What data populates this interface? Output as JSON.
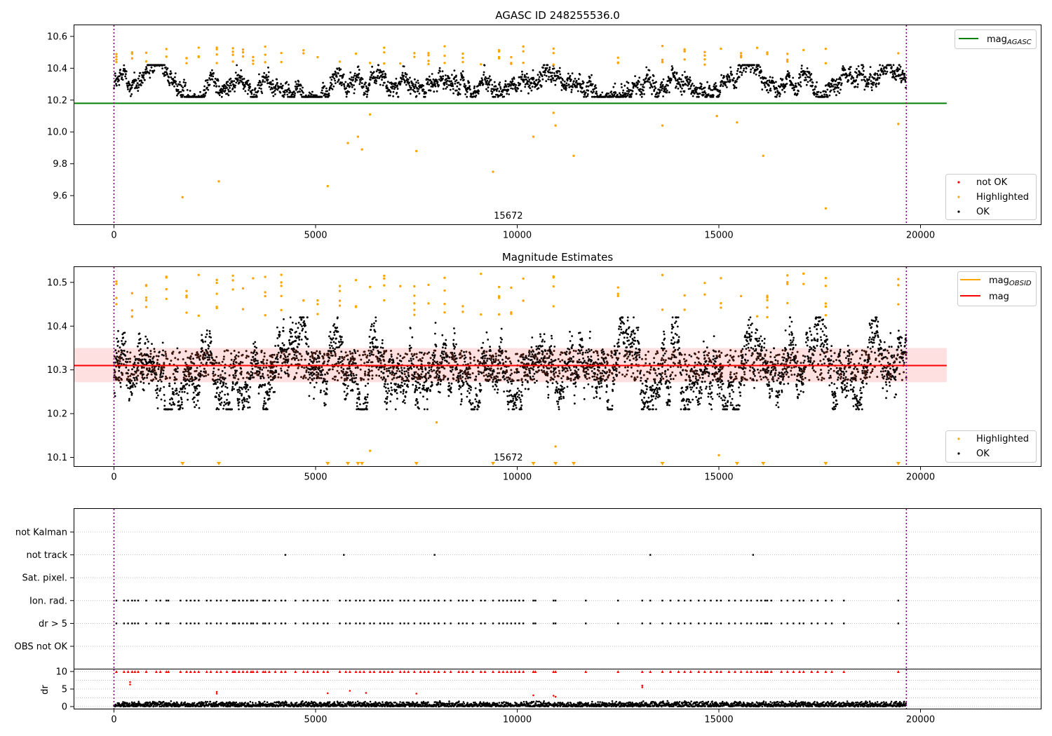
{
  "chart_data": [
    {
      "type": "scatter",
      "title": "AGASC ID 248255536.0",
      "xlim": [
        -1000,
        23000
      ],
      "ylim": [
        9.42,
        10.67
      ],
      "x_ticks": [
        0,
        5000,
        10000,
        15000,
        20000
      ],
      "y_ticks": [
        9.6,
        9.8,
        10.0,
        10.2,
        10.4,
        10.6
      ],
      "grid": false,
      "annotation": "15672",
      "vlines": [
        0,
        19650
      ],
      "hlines": [
        {
          "name": "mag_AGASC",
          "y": 10.18,
          "x_range": [
            -1000,
            20650
          ],
          "color": "#008000"
        }
      ],
      "series": [
        {
          "name": "not OK",
          "color": "#ff0000",
          "points": []
        },
        {
          "name": "Highlighted",
          "color": "#ffa500",
          "points": [
            [
              1700,
              9.59
            ],
            [
              2600,
              9.69
            ],
            [
              5300,
              9.66
            ],
            [
              5800,
              9.93
            ],
            [
              6050,
              9.97
            ],
            [
              6150,
              9.89
            ],
            [
              6350,
              10.11
            ],
            [
              7500,
              9.88
            ],
            [
              9400,
              9.75
            ],
            [
              10400,
              9.97
            ],
            [
              10900,
              10.12
            ],
            [
              10950,
              10.04
            ],
            [
              11400,
              9.85
            ],
            [
              13600,
              10.04
            ],
            [
              14950,
              10.1
            ],
            [
              15450,
              10.06
            ],
            [
              16100,
              9.85
            ],
            [
              17650,
              9.52
            ],
            [
              19450,
              10.05
            ]
          ]
        },
        {
          "name": "OK",
          "color": "#000000",
          "points": [],
          "band": {
            "x_range": [
              0,
              19650
            ],
            "y_range": [
              10.22,
              10.42
            ],
            "center": 10.31
          }
        }
      ],
      "legend": {
        "position": "lower right",
        "entries": [
          {
            "label": "not OK",
            "color": "#ff0000"
          },
          {
            "label": "Highlighted",
            "color": "#ffa500"
          },
          {
            "label": "OK",
            "color": "#000000"
          }
        ]
      },
      "legend2": {
        "position": "upper right",
        "entries": [
          {
            "label": "mag",
            "sub": "AGASC",
            "color": "#008000"
          }
        ]
      }
    },
    {
      "type": "scatter",
      "title": "Magnitude Estimates",
      "xlim": [
        -1000,
        23000
      ],
      "ylim": [
        10.08,
        10.535
      ],
      "x_ticks": [
        0,
        5000,
        10000,
        15000,
        20000
      ],
      "y_ticks": [
        10.1,
        10.2,
        10.3,
        10.4,
        10.5
      ],
      "grid": false,
      "annotation": "15672",
      "vlines": [
        0,
        19650
      ],
      "hlines": [
        {
          "name": "mag",
          "y": 10.31,
          "x_range": [
            -1000,
            20650
          ],
          "color": "#ff0000"
        }
      ],
      "bands": [
        {
          "y_range": [
            10.272,
            10.35
          ],
          "x_range": [
            -1000,
            20650
          ],
          "color": "#ff0000",
          "alpha": 0.12
        }
      ],
      "series": [
        {
          "name": "Highlighted",
          "color": "#ffa500",
          "points": [
            [
              8000,
              10.18
            ],
            [
              6350,
              10.115
            ],
            [
              10950,
              10.125
            ],
            [
              15000,
              10.105
            ]
          ]
        },
        {
          "name": "OK",
          "color": "#000000",
          "points": [],
          "band": {
            "x_range": [
              0,
              19650
            ],
            "y_range": [
              10.21,
              10.42
            ],
            "center": 10.31
          }
        }
      ],
      "out_of_range_markers_x": [
        1700,
        2600,
        5300,
        5800,
        6050,
        6150,
        7500,
        9400,
        10400,
        10950,
        11400,
        13600,
        15450,
        16100,
        17650,
        19450
      ],
      "legend": {
        "position": "lower right",
        "entries": [
          {
            "label": "Highlighted",
            "color": "#ffa500"
          },
          {
            "label": "OK",
            "color": "#000000"
          }
        ]
      },
      "legend2": {
        "position": "upper right",
        "entries": [
          {
            "label": "mag",
            "sub": "OBSID",
            "color": "#ffa500"
          },
          {
            "label": "mag",
            "sub": "",
            "color": "#ff0000"
          }
        ]
      }
    },
    {
      "type": "scatter",
      "title": "",
      "xlim": [
        -1000,
        23000
      ],
      "categories": [
        "not Kalman",
        "not track",
        "Sat. pixel.",
        "Ion. rad.",
        "dr > 5",
        "OBS not OK"
      ],
      "vlines": [
        0,
        19650
      ],
      "grid": "horizontal dotted",
      "series": [
        {
          "name": "not track",
          "x": [
            4250,
            5700,
            7950,
            13300,
            15850
          ]
        },
        {
          "name": "Ion. rad.",
          "x": [
            60,
            250,
            350,
            450,
            520,
            600,
            800,
            1050,
            1150,
            1300,
            1350,
            1650,
            1800,
            1900,
            2000,
            2100,
            2300,
            2400,
            2550,
            2650,
            2800,
            2950,
            3000,
            3100,
            3200,
            3300,
            3400,
            3450,
            3550,
            3700,
            3750,
            3850,
            4000,
            4150,
            4250,
            4500,
            4700,
            4800,
            4950,
            5050,
            5200,
            5300,
            5600,
            5750,
            5850,
            6000,
            6100,
            6200,
            6350,
            6450,
            6600,
            6700,
            6800,
            6900,
            7100,
            7200,
            7300,
            7450,
            7600,
            7700,
            7800,
            7950,
            8050,
            8200,
            8350,
            8550,
            8650,
            8750,
            8900,
            9100,
            9200,
            9400,
            9550,
            9650,
            9750,
            9850,
            9950,
            10050,
            10150,
            10400,
            10450,
            10900,
            10950,
            11700,
            12500,
            13100,
            13300,
            13600,
            13800,
            14000,
            14150,
            14300,
            14500,
            14650,
            14800,
            14950,
            15050,
            15250,
            15400,
            15550,
            15700,
            15800,
            15950,
            16050,
            16150,
            16200,
            16300,
            16550,
            16700,
            16850,
            17000,
            17100,
            17300,
            17450,
            17650,
            17800,
            18100,
            19450
          ]
        },
        {
          "name": "dr > 5",
          "x": [
            60,
            250,
            350,
            450,
            520,
            600,
            800,
            1050,
            1150,
            1300,
            1350,
            1650,
            1800,
            1900,
            2000,
            2100,
            2300,
            2400,
            2550,
            2650,
            2800,
            2950,
            3000,
            3100,
            3200,
            3300,
            3400,
            3450,
            3550,
            3700,
            3750,
            3850,
            4000,
            4150,
            4250,
            4500,
            4700,
            4800,
            4950,
            5050,
            5200,
            5300,
            5600,
            5750,
            5850,
            6000,
            6100,
            6200,
            6350,
            6450,
            6600,
            6700,
            6800,
            6900,
            7100,
            7200,
            7300,
            7450,
            7600,
            7700,
            7800,
            7950,
            8050,
            8200,
            8350,
            8550,
            8650,
            8750,
            8900,
            9100,
            9200,
            9400,
            9550,
            9650,
            9750,
            9850,
            9950,
            10050,
            10150,
            10400,
            10450,
            10900,
            10950,
            11700,
            12500,
            13100,
            13300,
            13600,
            13800,
            14000,
            14150,
            14300,
            14500,
            14650,
            14800,
            14950,
            15050,
            15250,
            15400,
            15550,
            15700,
            15800,
            15950,
            16050,
            16150,
            16200,
            16300,
            16550,
            16700,
            16850,
            17000,
            17100,
            17300,
            17450,
            17650,
            17800,
            18100,
            19450
          ]
        }
      ]
    },
    {
      "type": "scatter",
      "ylabel": "dr",
      "xlim": [
        -1000,
        23000
      ],
      "ylim": [
        -0.6,
        10.6
      ],
      "y_ticks": [
        0,
        5,
        10
      ],
      "x_ticks": [
        0,
        5000,
        10000,
        15000,
        20000
      ],
      "vlines": [
        0,
        19650
      ],
      "grid": "horizontal dotted",
      "series": [
        {
          "name": "dr",
          "color": "#000000",
          "band": {
            "x_range": [
              0,
              19650
            ],
            "y_range": [
              0,
              2
            ]
          }
        },
        {
          "name": "capped",
          "color": "#ff0000",
          "marker": "triangle-up",
          "y": 10,
          "x_same_as": "Ion. rad."
        },
        {
          "name": "large",
          "color": "#ff0000",
          "points": [
            [
              400,
              7
            ],
            [
              400,
              6.3
            ],
            [
              2550,
              4.2
            ],
            [
              2550,
              3.7
            ],
            [
              5300,
              3.8
            ],
            [
              5850,
              4.5
            ],
            [
              6250,
              3.9
            ],
            [
              7500,
              3.7
            ],
            [
              10400,
              3.2
            ],
            [
              10900,
              3.1
            ],
            [
              10950,
              2.8
            ],
            [
              13100,
              6.0
            ],
            [
              13100,
              5.5
            ]
          ]
        }
      ]
    }
  ]
}
